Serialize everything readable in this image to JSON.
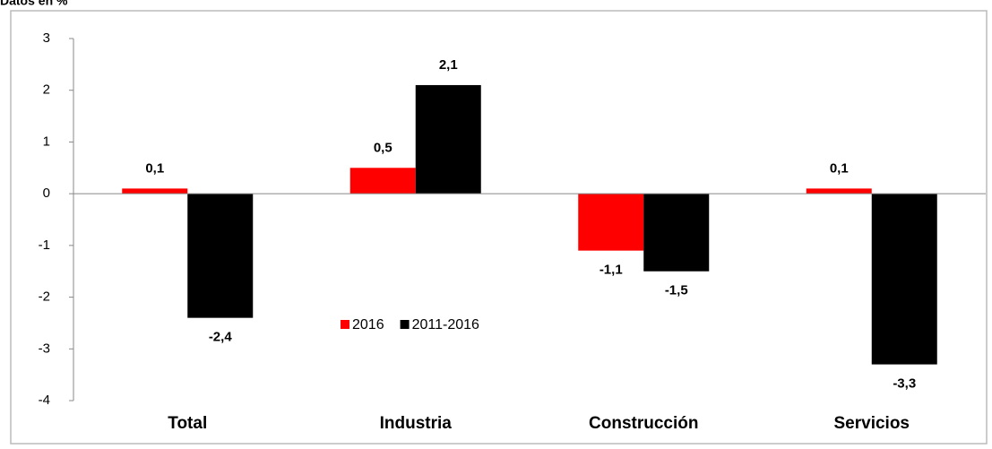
{
  "chart_data": {
    "type": "bar",
    "title": "Datos en %",
    "categories": [
      "Total",
      "Industria",
      "Construcción",
      "Servicios"
    ],
    "series": [
      {
        "name": "2016",
        "color": "#ff0000",
        "values": [
          0.1,
          0.5,
          -1.1,
          0.1
        ],
        "value_labels": [
          "0,1",
          "0,5",
          "-1,1",
          "0,1"
        ]
      },
      {
        "name": "2011-2016",
        "color": "#000000",
        "values": [
          -2.4,
          2.1,
          -1.5,
          -3.3
        ],
        "value_labels": [
          "-2,4",
          "2,1",
          "-1,5",
          "-3,3"
        ]
      }
    ],
    "ylim": [
      -4,
      3
    ],
    "yticks": [
      3,
      2,
      1,
      0,
      -1,
      -2,
      -3,
      -4
    ],
    "grid": false,
    "legend": "center"
  }
}
